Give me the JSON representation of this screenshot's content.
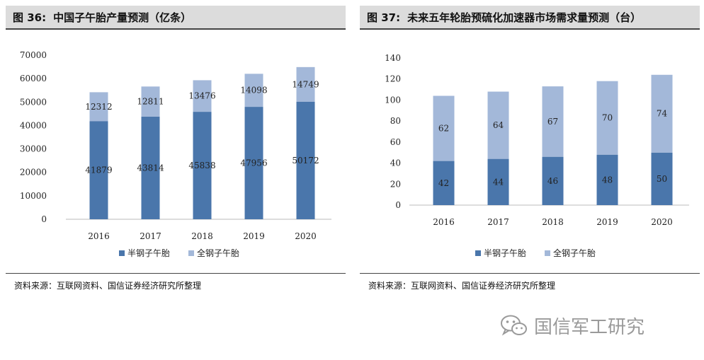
{
  "colors": {
    "semi": "#4a76ab",
    "full": "#a3b8d9"
  },
  "legend": {
    "semi_label": "半钢子午胎",
    "full_label": "全钢子午胎"
  },
  "panels": [
    {
      "fig_num": "图 36:",
      "title": "中国子午胎产量预测（亿条）",
      "source": "资料来源：互联网资料、国信证券经济研究所整理"
    },
    {
      "fig_num": "图 37:",
      "title": "未来五年轮胎预硫化加速器市场需求量预测（台）",
      "source": "资料来源：互联网资料、国信证券经济研究所整理"
    }
  ],
  "chart_data": [
    {
      "type": "bar",
      "stacked": true,
      "title": "中国子午胎产量预测（亿条）",
      "categories": [
        "2016",
        "2017",
        "2018",
        "2019",
        "2020"
      ],
      "series": [
        {
          "name": "半钢子午胎",
          "values": [
            41879,
            43814,
            45838,
            47956,
            50172
          ]
        },
        {
          "name": "全钢子午胎",
          "values": [
            12312,
            12811,
            13476,
            14098,
            14749
          ]
        }
      ],
      "ylim": [
        0,
        70000
      ],
      "yticks": [
        "0",
        "10000",
        "20000",
        "30000",
        "40000",
        "50000",
        "60000",
        "70000"
      ],
      "legend_position": "bottom",
      "grid": false
    },
    {
      "type": "bar",
      "stacked": true,
      "title": "未来五年轮胎预硫化加速器市场需求量预测（台）",
      "categories": [
        "2016",
        "2017",
        "2018",
        "2019",
        "2020"
      ],
      "series": [
        {
          "name": "半钢子午胎",
          "values": [
            42,
            44,
            46,
            48,
            50
          ]
        },
        {
          "name": "全钢子午胎",
          "values": [
            62,
            64,
            67,
            70,
            74
          ]
        }
      ],
      "ylim": [
        0,
        140
      ],
      "yticks": [
        "0",
        "20",
        "40",
        "60",
        "80",
        "100",
        "120",
        "140"
      ],
      "legend_position": "bottom",
      "grid": false
    }
  ],
  "watermark": {
    "text": "国信军工研究",
    "icon": "wechat-icon"
  }
}
